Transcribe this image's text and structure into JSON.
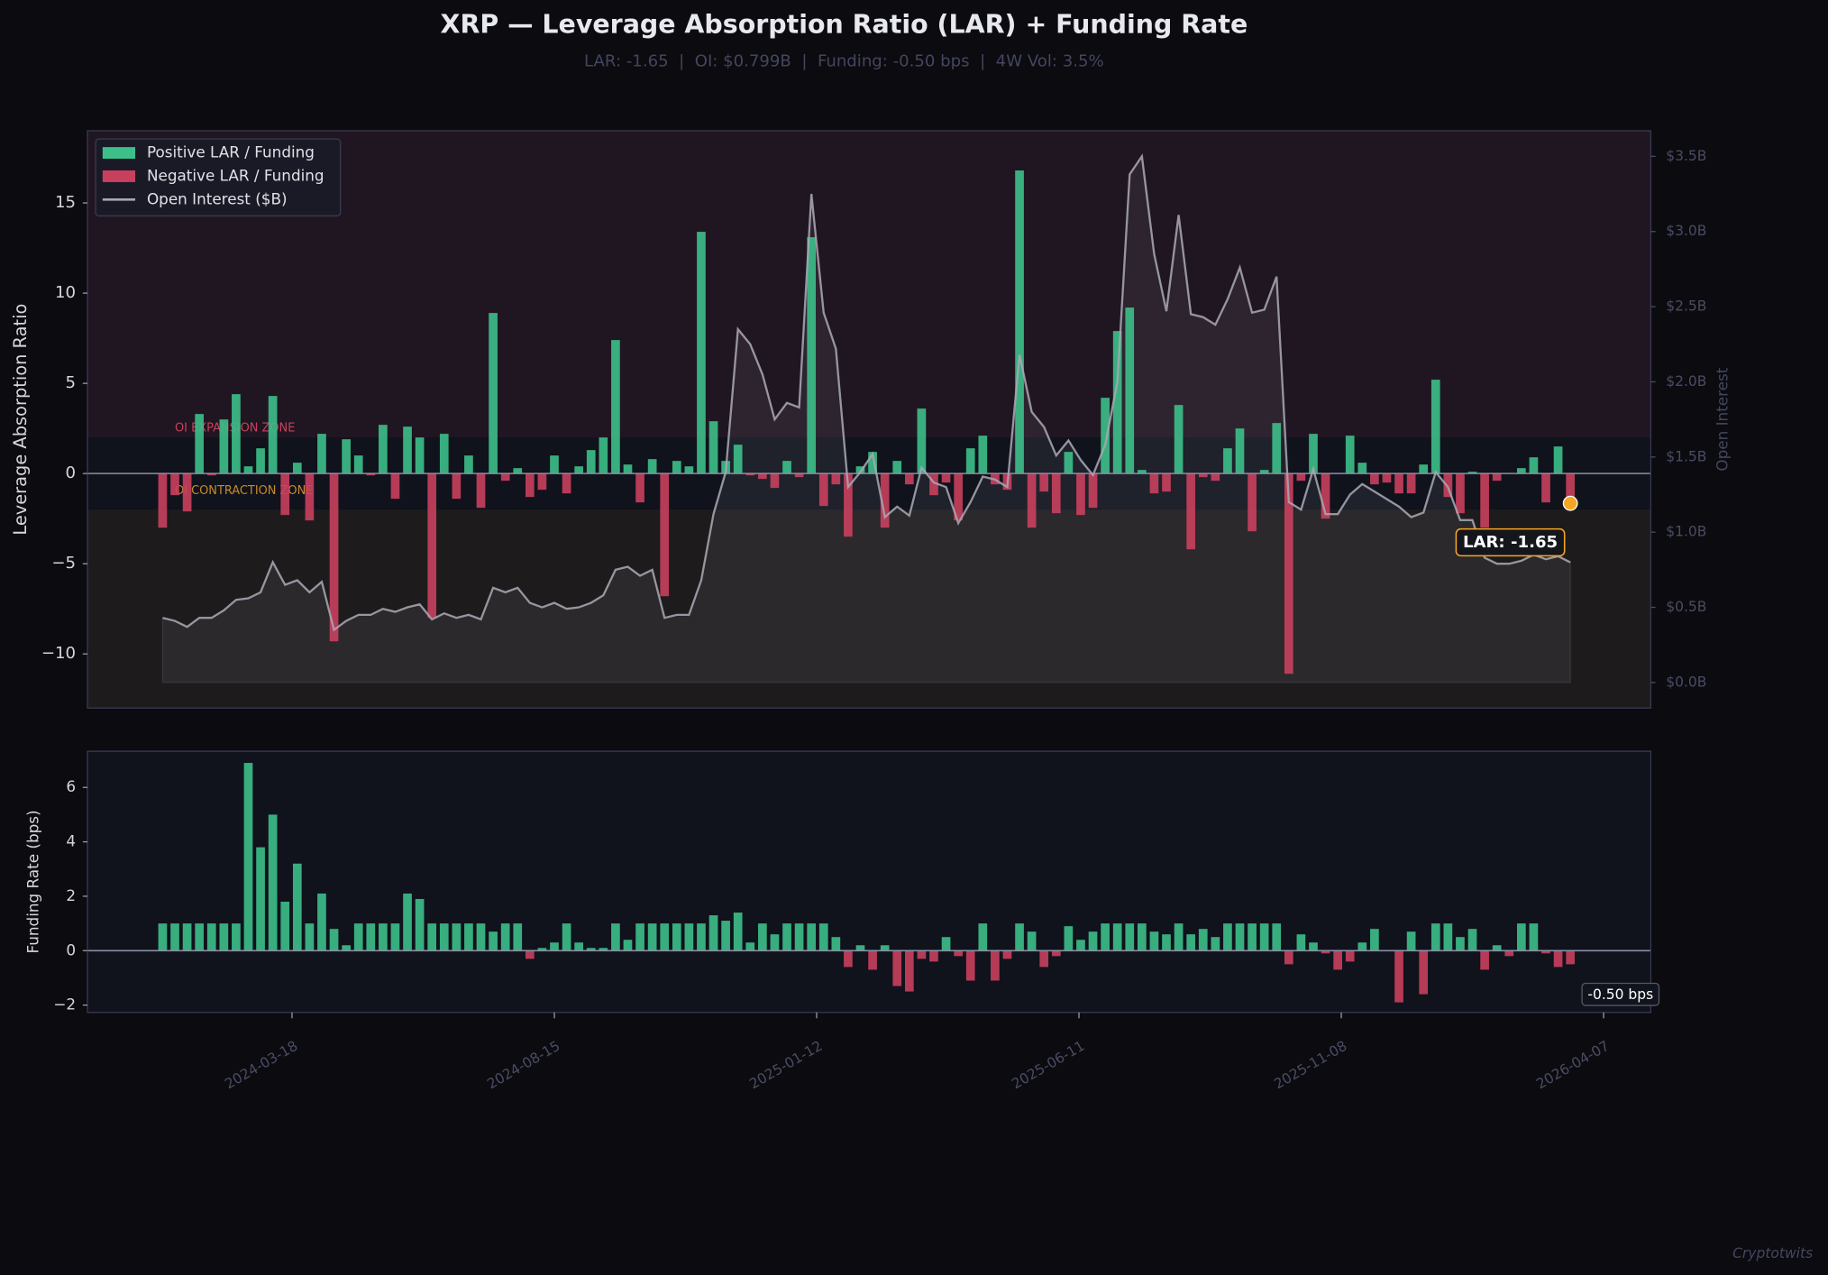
{
  "title": "XRP — Leverage Absorption Ratio (LAR) + Funding Rate",
  "subtitle": "LAR: -1.65  |  OI: $0.799B  |  Funding: -0.50 bps  |  4W Vol: 3.5%",
  "watermark": "Cryptotwits",
  "chart_data": [
    {
      "type": "bar",
      "ylabel": "Leverage Absorption Ratio",
      "y2label": "Open Interest",
      "x": [
        "2024-01-04",
        "2024-01-11",
        "2024-01-18",
        "2024-01-25",
        "2024-02-01",
        "2024-02-08",
        "2024-02-15",
        "2024-02-22",
        "2024-02-29",
        "2024-03-07",
        "2024-03-14",
        "2024-03-21",
        "2024-03-28",
        "2024-04-04",
        "2024-04-11",
        "2024-04-18",
        "2024-04-25",
        "2024-05-02",
        "2024-05-09",
        "2024-05-16",
        "2024-05-23",
        "2024-05-30",
        "2024-06-06",
        "2024-06-13",
        "2024-06-20",
        "2024-06-27",
        "2024-07-04",
        "2024-07-11",
        "2024-07-18",
        "2024-07-25",
        "2024-08-01",
        "2024-08-08",
        "2024-08-15",
        "2024-08-22",
        "2024-08-29",
        "2024-09-05",
        "2024-09-12",
        "2024-09-19",
        "2024-09-26",
        "2024-10-03",
        "2024-10-10",
        "2024-10-17",
        "2024-10-24",
        "2024-10-31",
        "2024-11-07",
        "2024-11-14",
        "2024-11-21",
        "2024-11-28",
        "2024-12-05",
        "2024-12-12",
        "2024-12-19",
        "2024-12-26",
        "2025-01-02",
        "2025-01-09",
        "2025-01-16",
        "2025-01-23",
        "2025-01-30",
        "2025-02-06",
        "2025-02-13",
        "2025-02-20",
        "2025-02-27",
        "2025-03-06",
        "2025-03-13",
        "2025-03-20",
        "2025-03-27",
        "2025-04-03",
        "2025-04-10",
        "2025-04-17",
        "2025-04-24",
        "2025-05-01",
        "2025-05-08",
        "2025-05-15",
        "2025-05-22",
        "2025-05-29",
        "2025-06-05",
        "2025-06-12",
        "2025-06-19",
        "2025-06-26",
        "2025-07-03",
        "2025-07-10",
        "2025-07-17",
        "2025-07-24",
        "2025-07-31",
        "2025-08-07",
        "2025-08-14",
        "2025-08-21",
        "2025-08-28",
        "2025-09-04",
        "2025-09-11",
        "2025-09-18",
        "2025-09-25",
        "2025-10-02",
        "2025-10-09",
        "2025-10-16",
        "2025-10-23",
        "2025-10-30",
        "2025-11-06",
        "2025-11-13",
        "2025-11-20",
        "2025-11-27",
        "2025-12-04",
        "2025-12-11",
        "2025-12-18",
        "2025-12-25",
        "2026-01-01",
        "2026-01-08",
        "2026-01-15",
        "2026-01-22",
        "2026-01-29",
        "2026-02-05",
        "2026-02-12",
        "2026-02-19",
        "2026-02-26",
        "2026-03-05",
        "2026-03-12",
        "2026-03-19"
      ],
      "xlim": [
        "2023-11-22",
        "2026-05-04"
      ],
      "ylim": [
        -13,
        19
      ],
      "yticks": [
        {
          "value": -10,
          "label": "−10"
        },
        {
          "value": -5,
          "label": "−5"
        },
        0,
        5,
        10,
        15
      ],
      "y2lim": [
        -0.17,
        3.67
      ],
      "y2ticks": [
        {
          "value": 0,
          "label": "$0.0B"
        },
        {
          "value": 0.5,
          "label": "$0.5B"
        },
        {
          "value": 1,
          "label": "$1.0B"
        },
        {
          "value": 1.5,
          "label": "$1.5B"
        },
        {
          "value": 2,
          "label": "$2.0B"
        },
        {
          "value": 2.5,
          "label": "$2.5B"
        },
        {
          "value": 3,
          "label": "$3.0B"
        },
        {
          "value": 3.5,
          "label": "$3.5B"
        }
      ],
      "zones": {
        "expansion_above": 2,
        "contraction_below": -2,
        "expansion_label": "OI EXPANSION ZONE",
        "contraction_label": "OI CONTRACTION ZONE",
        "expansion_color": "#c8405e",
        "contraction_color": "#c88a2a"
      },
      "legend_items": [
        {
          "name": "Positive LAR / Funding",
          "color": "#3dbf8a"
        },
        {
          "name": "Negative LAR / Funding",
          "color": "#c8405e"
        }
      ],
      "legend": "upper left",
      "series": [
        {
          "positive_color": "#3dbf8a",
          "negative_color": "#c8405e",
          "values": [
            -3.0,
            -1.2,
            -2.1,
            3.3,
            -0.1,
            3.0,
            4.4,
            0.4,
            1.4,
            4.3,
            -2.3,
            0.6,
            -2.6,
            2.2,
            -9.3,
            1.9,
            1.0,
            -0.1,
            2.7,
            -1.4,
            2.6,
            2.0,
            -8.0,
            2.2,
            -1.4,
            1.0,
            -1.9,
            8.9,
            -0.4,
            0.3,
            -1.3,
            -0.9,
            1.0,
            -1.1,
            0.4,
            1.3,
            2.0,
            7.4,
            0.5,
            -1.6,
            0.8,
            -6.8,
            0.7,
            0.4,
            13.4,
            2.9,
            0.7,
            1.6,
            -0.1,
            -0.3,
            -0.8,
            0.7,
            -0.2,
            13.1,
            -1.8,
            -0.6,
            -3.5,
            0.4,
            1.2,
            -3.0,
            0.7,
            -0.6,
            3.6,
            -1.2,
            -0.5,
            -2.6,
            1.4,
            2.1,
            -0.6,
            -0.9,
            16.8,
            -3.0,
            -1.0,
            -2.2,
            1.2,
            -2.3,
            -1.9,
            4.2,
            7.9,
            9.2,
            0.2,
            -1.1,
            -1.0,
            3.8,
            -4.2,
            -0.2,
            -0.4,
            1.4,
            2.5,
            -3.2,
            0.2,
            2.8,
            -11.1,
            -0.4,
            2.2,
            -2.5,
            0,
            2.1,
            0.6,
            -0.6,
            -0.5,
            -1.1,
            -1.1,
            0.5,
            5.2,
            -1.3,
            -2.2,
            0.1,
            -3.0,
            -0.4,
            0,
            0.3,
            0.9,
            -1.6,
            1.5,
            -1.65
          ]
        },
        {
          "name": "Open Interest ($B)",
          "type": "line",
          "axis": "y2",
          "color": "#a8a8b4",
          "values": [
            0.43,
            0.41,
            0.37,
            0.43,
            0.43,
            0.48,
            0.55,
            0.56,
            0.6,
            0.8,
            0.65,
            0.68,
            0.6,
            0.67,
            0.35,
            0.41,
            0.45,
            0.45,
            0.49,
            0.47,
            0.5,
            0.52,
            0.42,
            0.46,
            0.43,
            0.45,
            0.42,
            0.63,
            0.6,
            0.63,
            0.53,
            0.5,
            0.53,
            0.49,
            0.5,
            0.53,
            0.58,
            0.75,
            0.77,
            0.71,
            0.75,
            0.43,
            0.45,
            0.45,
            0.68,
            1.12,
            1.4,
            2.35,
            2.25,
            2.05,
            1.75,
            1.86,
            1.83,
            3.25,
            2.46,
            2.22,
            1.3,
            1.4,
            1.52,
            1.1,
            1.17,
            1.11,
            1.43,
            1.33,
            1.3,
            1.06,
            1.2,
            1.37,
            1.35,
            1.3,
            2.18,
            1.8,
            1.7,
            1.51,
            1.61,
            1.48,
            1.38,
            1.58,
            2.0,
            3.38,
            3.5,
            2.85,
            2.47,
            3.11,
            2.45,
            2.43,
            2.38,
            2.55,
            2.76,
            2.46,
            2.48,
            2.7,
            1.2,
            1.15,
            1.42,
            1.12,
            1.12,
            1.25,
            1.32,
            1.27,
            1.22,
            1.17,
            1.1,
            1.13,
            1.4,
            1.3,
            1.08,
            1.08,
            0.83,
            0.79,
            0.79,
            0.81,
            0.85,
            0.82,
            0.84,
            0.799
          ]
        }
      ],
      "annotation": "LAR: -1.65",
      "marker_color": "#f5a623"
    },
    {
      "type": "bar",
      "ylabel": "Funding Rate (bps)",
      "xticks": [
        "2024-03-18",
        "2024-08-15",
        "2025-01-12",
        "2025-06-11",
        "2025-11-08",
        "2026-04-07"
      ],
      "ylim": [
        -2.27,
        7.33
      ],
      "yticks": [
        {
          "value": -2,
          "label": "−2"
        },
        0,
        2,
        4,
        6
      ],
      "series": [
        {
          "positive_color": "#3dbf8a",
          "negative_color": "#c8405e",
          "values": [
            1.0,
            1.0,
            1.0,
            1.0,
            1.0,
            1.0,
            1.0,
            6.9,
            3.8,
            5.0,
            1.8,
            3.2,
            1.0,
            2.1,
            0.8,
            0.2,
            1.0,
            1.0,
            1.0,
            1.0,
            2.1,
            1.9,
            1.0,
            1.0,
            1.0,
            1.0,
            1.0,
            0.7,
            1.0,
            1.0,
            -0.3,
            0.1,
            0.3,
            1.0,
            0.3,
            0.1,
            0.1,
            1.0,
            0.4,
            1.0,
            1.0,
            1.0,
            1.0,
            1.0,
            1.0,
            1.3,
            1.1,
            1.4,
            0.3,
            1.0,
            0.6,
            1.0,
            1.0,
            1.0,
            1.0,
            0.5,
            -0.6,
            0.2,
            -0.7,
            0.2,
            -1.3,
            -1.5,
            -0.3,
            -0.4,
            0.5,
            -0.2,
            -1.1,
            1.0,
            -1.1,
            -0.3,
            1.0,
            0.7,
            -0.6,
            -0.2,
            0.9,
            0.4,
            0.7,
            1.0,
            1.0,
            1.0,
            1.0,
            0.7,
            0.6,
            1.0,
            0.6,
            0.8,
            0.5,
            1.0,
            1.0,
            1.0,
            1.0,
            1.0,
            -0.5,
            0.6,
            0.3,
            -0.1,
            -0.7,
            -0.4,
            0.3,
            0.8,
            0,
            -1.9,
            0.7,
            -1.6,
            1.0,
            1.0,
            0.5,
            0.8,
            -0.7,
            0.2,
            -0.2,
            1.0,
            1.0,
            -0.1,
            -0.6,
            -0.5
          ]
        }
      ],
      "annotation": "-0.50 bps"
    }
  ]
}
